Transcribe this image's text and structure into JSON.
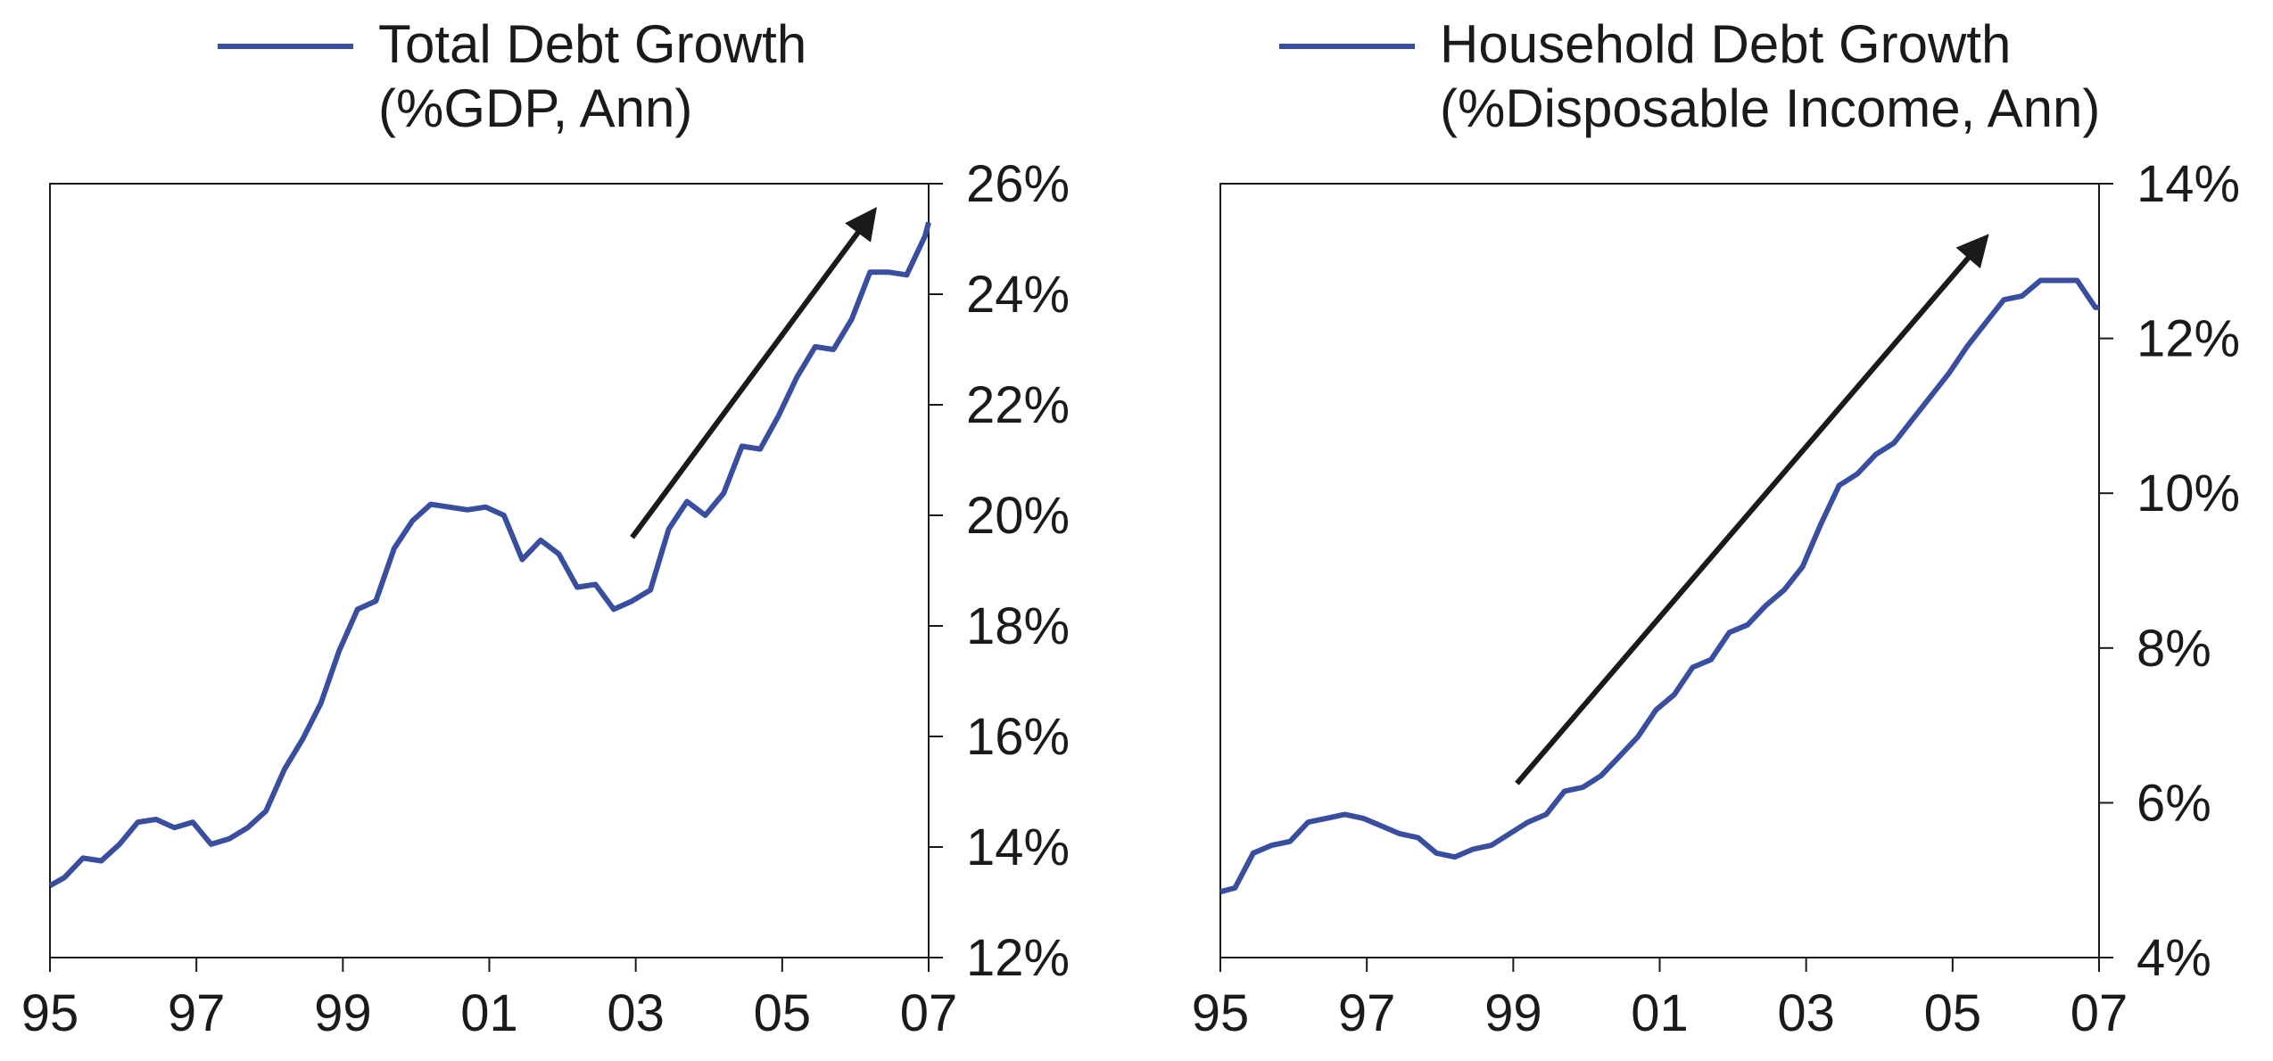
{
  "colors": {
    "series": "#3a4ea0",
    "arrow": "#1a1a1a",
    "axis": "#1a1a1a"
  },
  "chart_data": [
    {
      "type": "line",
      "legend": {
        "line1": "Total Debt Growth",
        "line2": "(%GDP, Ann)",
        "placement": "top"
      },
      "xticks": [
        "95",
        "97",
        "99",
        "01",
        "03",
        "05",
        "07"
      ],
      "yticks": [
        "26%",
        "24%",
        "22%",
        "20%",
        "18%",
        "16%",
        "14%",
        "12%"
      ],
      "xlim": [
        1995,
        2007
      ],
      "ylim": [
        12,
        26
      ],
      "y_axis_side": "right",
      "grid": false,
      "annotation": {
        "type": "arrow",
        "from": [
          2002.95,
          19.6
        ],
        "to": [
          2006.25,
          25.5
        ]
      },
      "series": [
        {
          "name": "Total Debt Growth (%GDP, Ann)",
          "x": [
            1995.0,
            1995.2,
            1995.45,
            1995.7,
            1995.95,
            1996.2,
            1996.45,
            1996.7,
            1996.95,
            1997.2,
            1997.45,
            1997.7,
            1997.95,
            1998.2,
            1998.45,
            1998.7,
            1998.95,
            1999.2,
            1999.45,
            1999.7,
            1999.95,
            2000.2,
            2000.45,
            2000.7,
            2000.95,
            2001.2,
            2001.45,
            2001.7,
            2001.95,
            2002.2,
            2002.45,
            2002.7,
            2002.95,
            2003.2,
            2003.45,
            2003.7,
            2003.95,
            2004.2,
            2004.45,
            2004.7,
            2004.95,
            2005.2,
            2005.45,
            2005.7,
            2005.95,
            2006.2,
            2006.45,
            2006.7,
            2006.95,
            2007.0
          ],
          "y": [
            13.3,
            13.45,
            13.8,
            13.75,
            14.05,
            14.45,
            14.5,
            14.35,
            14.45,
            14.05,
            14.15,
            14.35,
            14.65,
            15.4,
            15.95,
            16.6,
            17.55,
            18.3,
            18.45,
            19.4,
            19.9,
            20.2,
            20.15,
            20.1,
            20.15,
            20.0,
            19.2,
            19.55,
            19.3,
            18.7,
            18.75,
            18.3,
            18.45,
            18.65,
            19.75,
            20.25,
            20.0,
            20.4,
            21.25,
            21.2,
            21.8,
            22.5,
            23.05,
            23.0,
            23.55,
            24.4,
            24.4,
            24.35,
            25.05,
            25.3
          ]
        }
      ]
    },
    {
      "type": "line",
      "legend": {
        "line1": "Household Debt Growth",
        "line2": "(%Disposable Income, Ann)",
        "placement": "top"
      },
      "xticks": [
        "95",
        "97",
        "99",
        "01",
        "03",
        "05",
        "07"
      ],
      "yticks": [
        "14%",
        "12%",
        "10%",
        "8%",
        "6%",
        "4%"
      ],
      "xlim": [
        1995,
        2007
      ],
      "ylim": [
        4,
        14
      ],
      "y_axis_side": "right",
      "grid": false,
      "annotation": {
        "type": "arrow",
        "from": [
          1999.05,
          6.25
        ],
        "to": [
          2005.45,
          13.3
        ]
      },
      "series": [
        {
          "name": "Household Debt Growth (%Disposable Income, Ann)",
          "x": [
            1995.0,
            1995.2,
            1995.45,
            1995.7,
            1995.95,
            1996.2,
            1996.45,
            1996.7,
            1996.95,
            1997.2,
            1997.45,
            1997.7,
            1997.95,
            1998.2,
            1998.45,
            1998.7,
            1998.95,
            1999.2,
            1999.45,
            1999.7,
            1999.95,
            2000.2,
            2000.45,
            2000.7,
            2000.95,
            2001.2,
            2001.45,
            2001.7,
            2001.95,
            2002.2,
            2002.45,
            2002.7,
            2002.95,
            2003.2,
            2003.45,
            2003.7,
            2003.95,
            2004.2,
            2004.45,
            2004.7,
            2004.95,
            2005.2,
            2005.45,
            2005.7,
            2005.95,
            2006.2,
            2006.45,
            2006.7,
            2006.95,
            2007.0
          ],
          "y": [
            4.85,
            4.9,
            5.35,
            5.45,
            5.5,
            5.75,
            5.8,
            5.85,
            5.8,
            5.7,
            5.6,
            5.55,
            5.35,
            5.3,
            5.4,
            5.45,
            5.6,
            5.75,
            5.85,
            6.15,
            6.2,
            6.35,
            6.6,
            6.85,
            7.2,
            7.4,
            7.75,
            7.85,
            8.2,
            8.3,
            8.55,
            8.75,
            9.05,
            9.6,
            10.1,
            10.25,
            10.5,
            10.65,
            10.95,
            11.25,
            11.55,
            11.9,
            12.2,
            12.5,
            12.55,
            12.75,
            12.75,
            12.75,
            12.4,
            12.4
          ]
        }
      ]
    }
  ]
}
